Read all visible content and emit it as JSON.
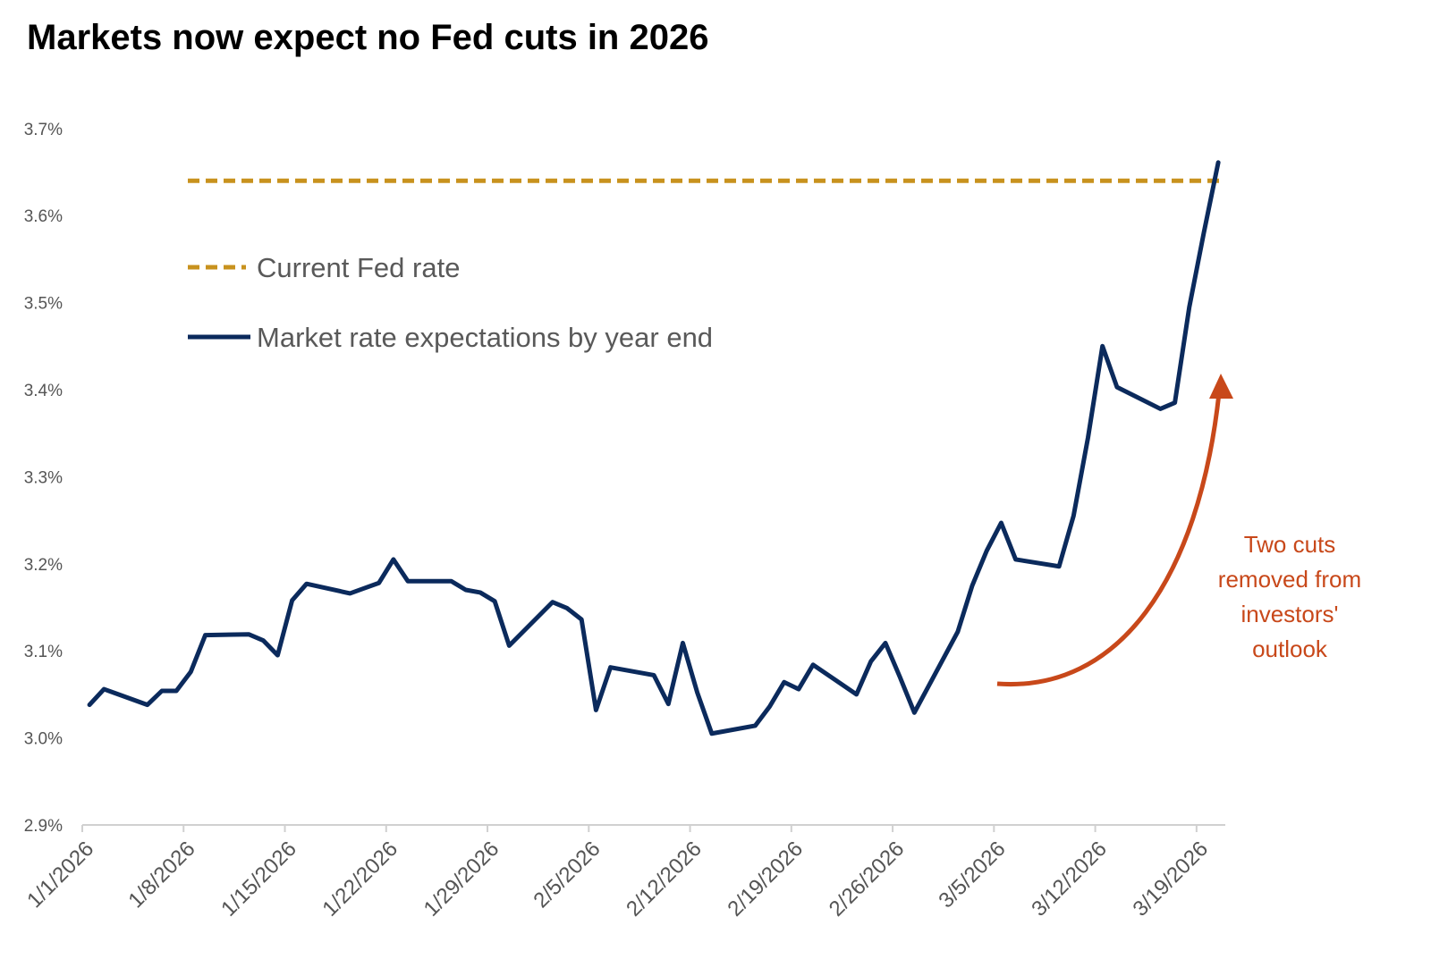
{
  "title": "Markets now expect no Fed cuts in 2026",
  "colors": {
    "fed_rate": "#c8921e",
    "expectations": "#0b2a5c",
    "annotation": "#c8481a"
  },
  "annotation": {
    "lines": [
      "Two cuts",
      "removed from",
      "investors'",
      "outlook"
    ],
    "arrow": "curved-up-arrow"
  },
  "chart_data": {
    "type": "line",
    "title": "Markets now expect no Fed cuts in 2026",
    "xlabel": "",
    "ylabel": "",
    "ylim": [
      2.9,
      3.7
    ],
    "y_ticks": [
      "2.9%",
      "3.0%",
      "3.1%",
      "3.2%",
      "3.3%",
      "3.4%",
      "3.5%",
      "3.6%",
      "3.7%"
    ],
    "x_ticks": [
      "1/1/2026",
      "1/8/2026",
      "1/15/2026",
      "1/22/2026",
      "1/29/2026",
      "2/5/2026",
      "2/12/2026",
      "2/19/2026",
      "2/26/2026",
      "3/5/2026",
      "3/12/2026",
      "3/19/2026"
    ],
    "grid": false,
    "legend_position": "upper-left",
    "series": [
      {
        "name": "Current Fed rate",
        "style": "dashed",
        "constant": 3.64
      },
      {
        "name": "Market rate expectations by year end",
        "style": "solid",
        "x": [
          "1/1",
          "1/2",
          "1/5",
          "1/6",
          "1/7",
          "1/8",
          "1/9",
          "1/12",
          "1/13",
          "1/14",
          "1/15",
          "1/16",
          "1/19",
          "1/20",
          "1/21",
          "1/22",
          "1/23",
          "1/26",
          "1/27",
          "1/28",
          "1/29",
          "1/30",
          "2/2",
          "2/3",
          "2/4",
          "2/5",
          "2/6",
          "2/9",
          "2/10",
          "2/11",
          "2/12",
          "2/13",
          "2/16",
          "2/17",
          "2/18",
          "2/19",
          "2/20",
          "2/23",
          "2/24",
          "2/25",
          "2/26",
          "2/27",
          "3/2",
          "3/3",
          "3/4",
          "3/5",
          "3/6",
          "3/9",
          "3/10",
          "3/11",
          "3/12",
          "3/13",
          "3/16",
          "3/17",
          "3/18",
          "3/19",
          "3/20"
        ],
        "values": [
          3.038,
          3.056,
          3.038,
          3.054,
          3.054,
          3.076,
          3.118,
          3.119,
          3.112,
          3.095,
          3.158,
          3.177,
          3.166,
          3.172,
          3.178,
          3.205,
          3.18,
          3.18,
          3.17,
          3.167,
          3.157,
          3.106,
          3.156,
          3.149,
          3.136,
          3.032,
          3.081,
          3.072,
          3.039,
          3.109,
          3.052,
          3.005,
          3.014,
          3.036,
          3.064,
          3.056,
          3.084,
          3.05,
          3.088,
          3.109,
          3.07,
          3.029,
          3.122,
          3.175,
          3.215,
          3.247,
          3.205,
          3.197,
          3.255,
          3.345,
          3.45,
          3.403,
          3.378,
          3.385,
          3.495,
          3.58,
          3.661
        ]
      }
    ]
  }
}
